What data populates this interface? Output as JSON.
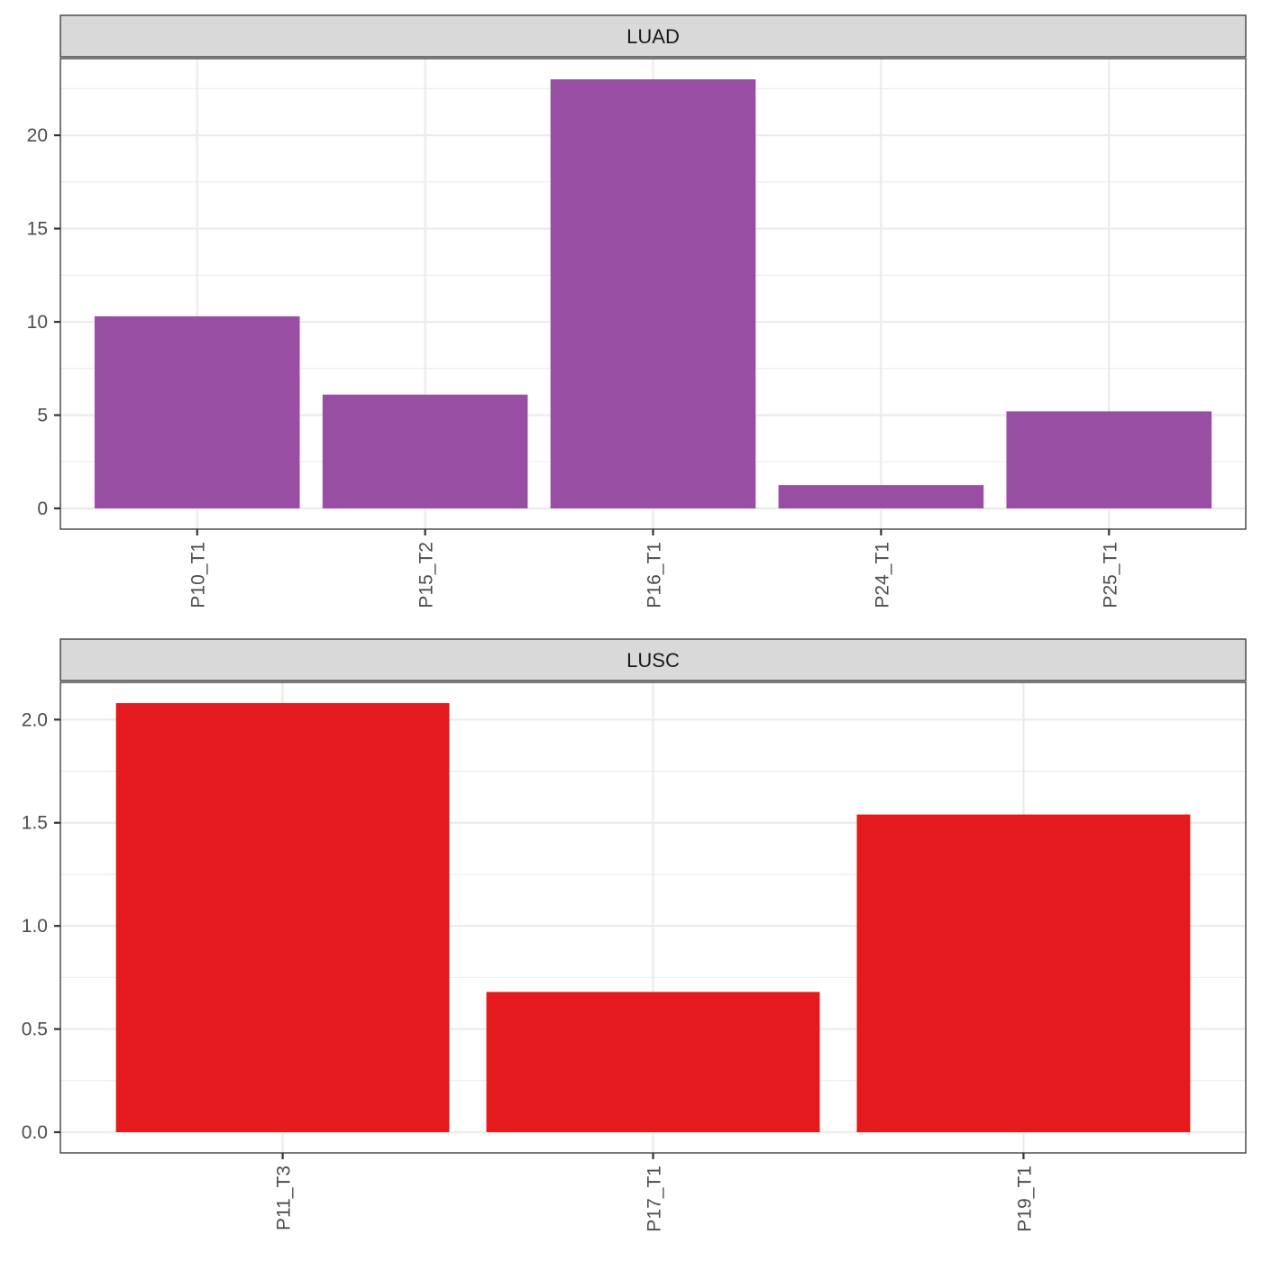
{
  "chart_data": [
    {
      "type": "bar",
      "facet_label": "LUAD",
      "categories": [
        "P10_T1",
        "P15_T2",
        "P16_T1",
        "P24_T1",
        "P25_T1"
      ],
      "values": [
        10.3,
        6.1,
        23.0,
        1.25,
        5.2
      ],
      "ylim": [
        0,
        23
      ],
      "y_ticks": [
        0,
        5,
        10,
        15,
        20
      ],
      "y_tick_labels": [
        "0",
        "5",
        "10",
        "15",
        "20"
      ],
      "bar_color": "#984EA3",
      "grid": true,
      "xlabel": "",
      "ylabel": ""
    },
    {
      "type": "bar",
      "facet_label": "LUSC",
      "categories": [
        "P11_T3",
        "P17_T1",
        "P19_T1"
      ],
      "values": [
        2.08,
        0.68,
        1.54
      ],
      "ylim": [
        0,
        2.08
      ],
      "y_ticks": [
        0,
        0.5,
        1.0,
        1.5,
        2.0
      ],
      "y_tick_labels": [
        "0.0",
        "0.5",
        "1.0",
        "1.5",
        "2.0"
      ],
      "bar_color": "#E41A1C",
      "grid": true,
      "xlabel": "",
      "ylabel": ""
    }
  ]
}
